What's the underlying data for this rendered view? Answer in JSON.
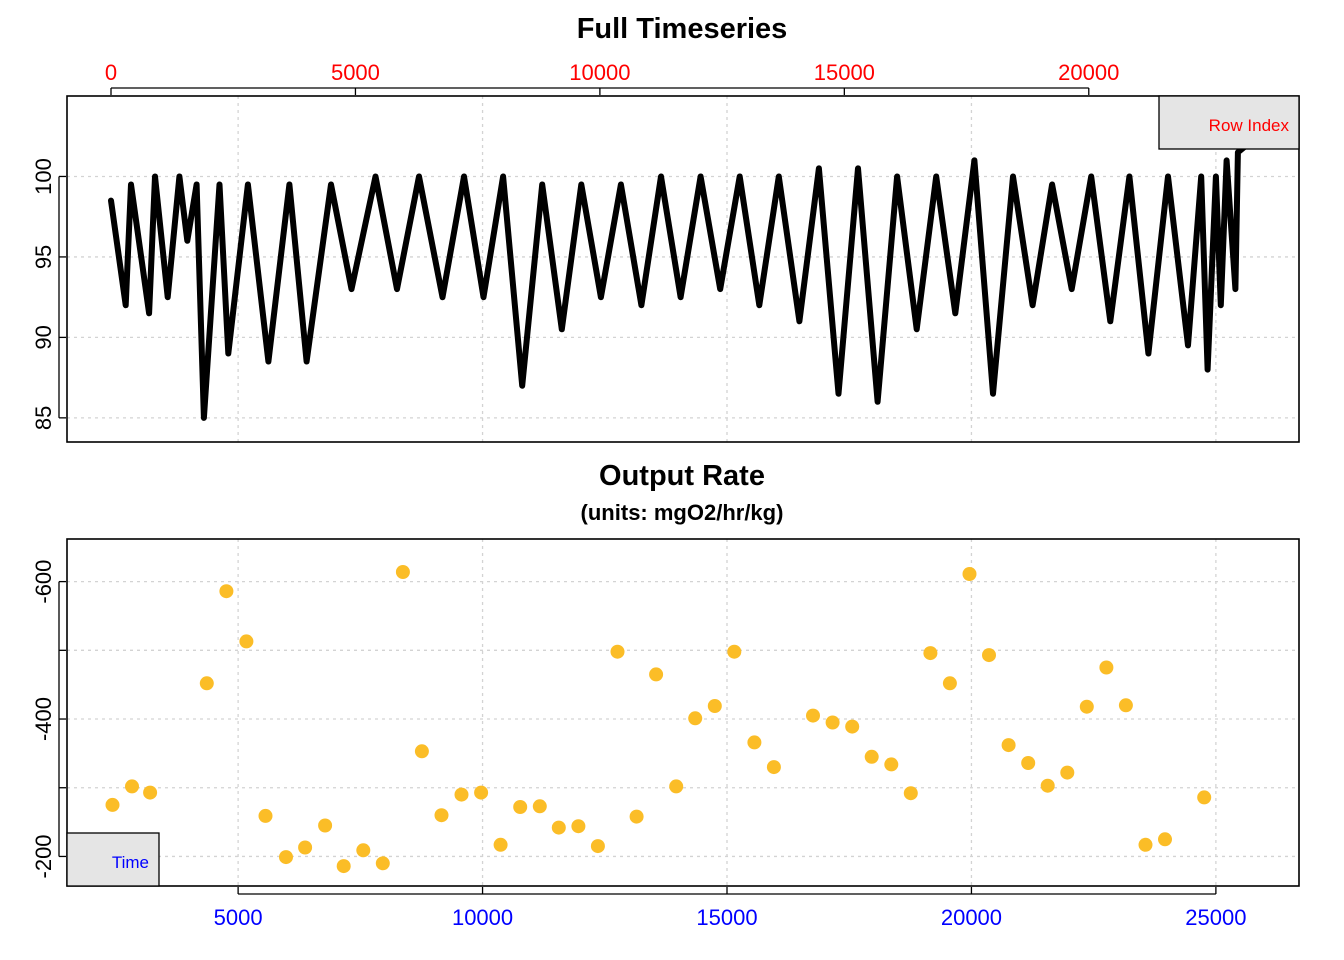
{
  "chart_data": [
    {
      "type": "line",
      "title": "Full Timeseries",
      "xlabel": "",
      "ylabel": "",
      "x_top_axis": {
        "label": "Row Index",
        "ticks": [
          0,
          5000,
          10000,
          15000,
          20000
        ],
        "range": [
          -900,
          24300
        ],
        "color": "#ff0000"
      },
      "x_bottom_axis": {
        "range": [
          1500,
          26700
        ]
      },
      "ylim": [
        83.5,
        105
      ],
      "y_ticks": [
        85,
        90,
        95,
        100
      ],
      "grid": true,
      "legend": {
        "position": "top-right",
        "label": "Row Index",
        "color": "#ff0000"
      },
      "series": [
        {
          "color": "#000000",
          "x": [
            2400,
            2700,
            2810,
            3180,
            3300,
            3560,
            3800,
            3960,
            4150,
            4300,
            4620,
            4800,
            5200,
            5620,
            6050,
            6400,
            6900,
            7320,
            7810,
            8250,
            8700,
            9180,
            9620,
            10020,
            10420,
            10810,
            11220,
            11620,
            12020,
            12420,
            12830,
            13250,
            13650,
            14050,
            14460,
            14860,
            15260,
            15660,
            16060,
            16480,
            16880,
            17280,
            17680,
            18080,
            18480,
            18880,
            19280,
            19670,
            20060,
            20440,
            20850,
            21250,
            21650,
            22050,
            22450,
            22840,
            23230,
            23620,
            24020,
            24430,
            24700,
            24830,
            25000,
            25100,
            25220,
            25400,
            25450,
            25650
          ],
          "y": [
            98.5,
            92,
            99.5,
            91.5,
            100,
            92.5,
            100,
            96,
            99.5,
            85,
            99.5,
            89,
            99.5,
            88.5,
            99.5,
            88.5,
            99.5,
            93,
            100,
            93,
            100,
            92.5,
            100,
            92.5,
            100,
            87,
            99.5,
            90.5,
            99.5,
            92.5,
            99.5,
            92,
            100,
            92.5,
            100,
            93,
            100,
            92,
            100,
            91,
            100.5,
            86.5,
            100.5,
            86,
            100,
            90.5,
            100,
            91.5,
            101,
            86.5,
            100,
            92,
            99.5,
            93,
            100,
            91,
            100,
            89,
            100,
            89.5,
            100,
            88,
            100,
            92,
            101,
            93,
            101.5,
            102
          ]
        }
      ]
    },
    {
      "type": "scatter",
      "title": "Output Rate",
      "subtitle": "(units: mgO2/hr/kg)",
      "xlabel": "",
      "ylabel": "",
      "x_bottom_axis": {
        "label": "Time",
        "ticks": [
          5000,
          10000,
          15000,
          20000,
          25000
        ],
        "range": [
          1500,
          26700
        ],
        "color": "#0000ff"
      },
      "ylim": [
        -157,
        -662
      ],
      "y_ticks": [
        -200,
        -400,
        -600
      ],
      "y_minor_ticks": [
        -300,
        -500
      ],
      "grid": true,
      "legend": {
        "position": "bottom-left",
        "label": "Time",
        "color": "#0000ff"
      },
      "series": [
        {
          "color": "#fbbd27",
          "x": [
            2430,
            2830,
            3200,
            4360,
            4760,
            5170,
            5560,
            5980,
            6370,
            6780,
            7160,
            7560,
            7960,
            8370,
            8760,
            9160,
            9570,
            9970,
            10370,
            10770,
            11170,
            11560,
            11960,
            12360,
            12760,
            13150,
            13550,
            13960,
            14350,
            14750,
            15150,
            15560,
            15960,
            16760,
            17160,
            17560,
            17960,
            18360,
            18760,
            19160,
            19560,
            19960,
            20360,
            20760,
            21160,
            21560,
            21960,
            22360,
            22760,
            23160,
            23560,
            23960,
            24760
          ],
          "y": [
            -275,
            -302,
            -293,
            -452,
            -586,
            -513,
            -259,
            -199,
            -213,
            -245,
            -186,
            -209,
            -190,
            -614,
            -353,
            -260,
            -290,
            -293,
            -217,
            -272,
            -273,
            -242,
            -244,
            -215,
            -498,
            -258,
            -465,
            -302,
            -401,
            -419,
            -498,
            -366,
            -330,
            -405,
            -395,
            -389,
            -345,
            -334,
            -292,
            -496,
            -452,
            -611,
            -493,
            -362,
            -336,
            -303,
            -322,
            -418,
            -475,
            -420,
            -217,
            -225,
            -286
          ]
        }
      ]
    }
  ]
}
